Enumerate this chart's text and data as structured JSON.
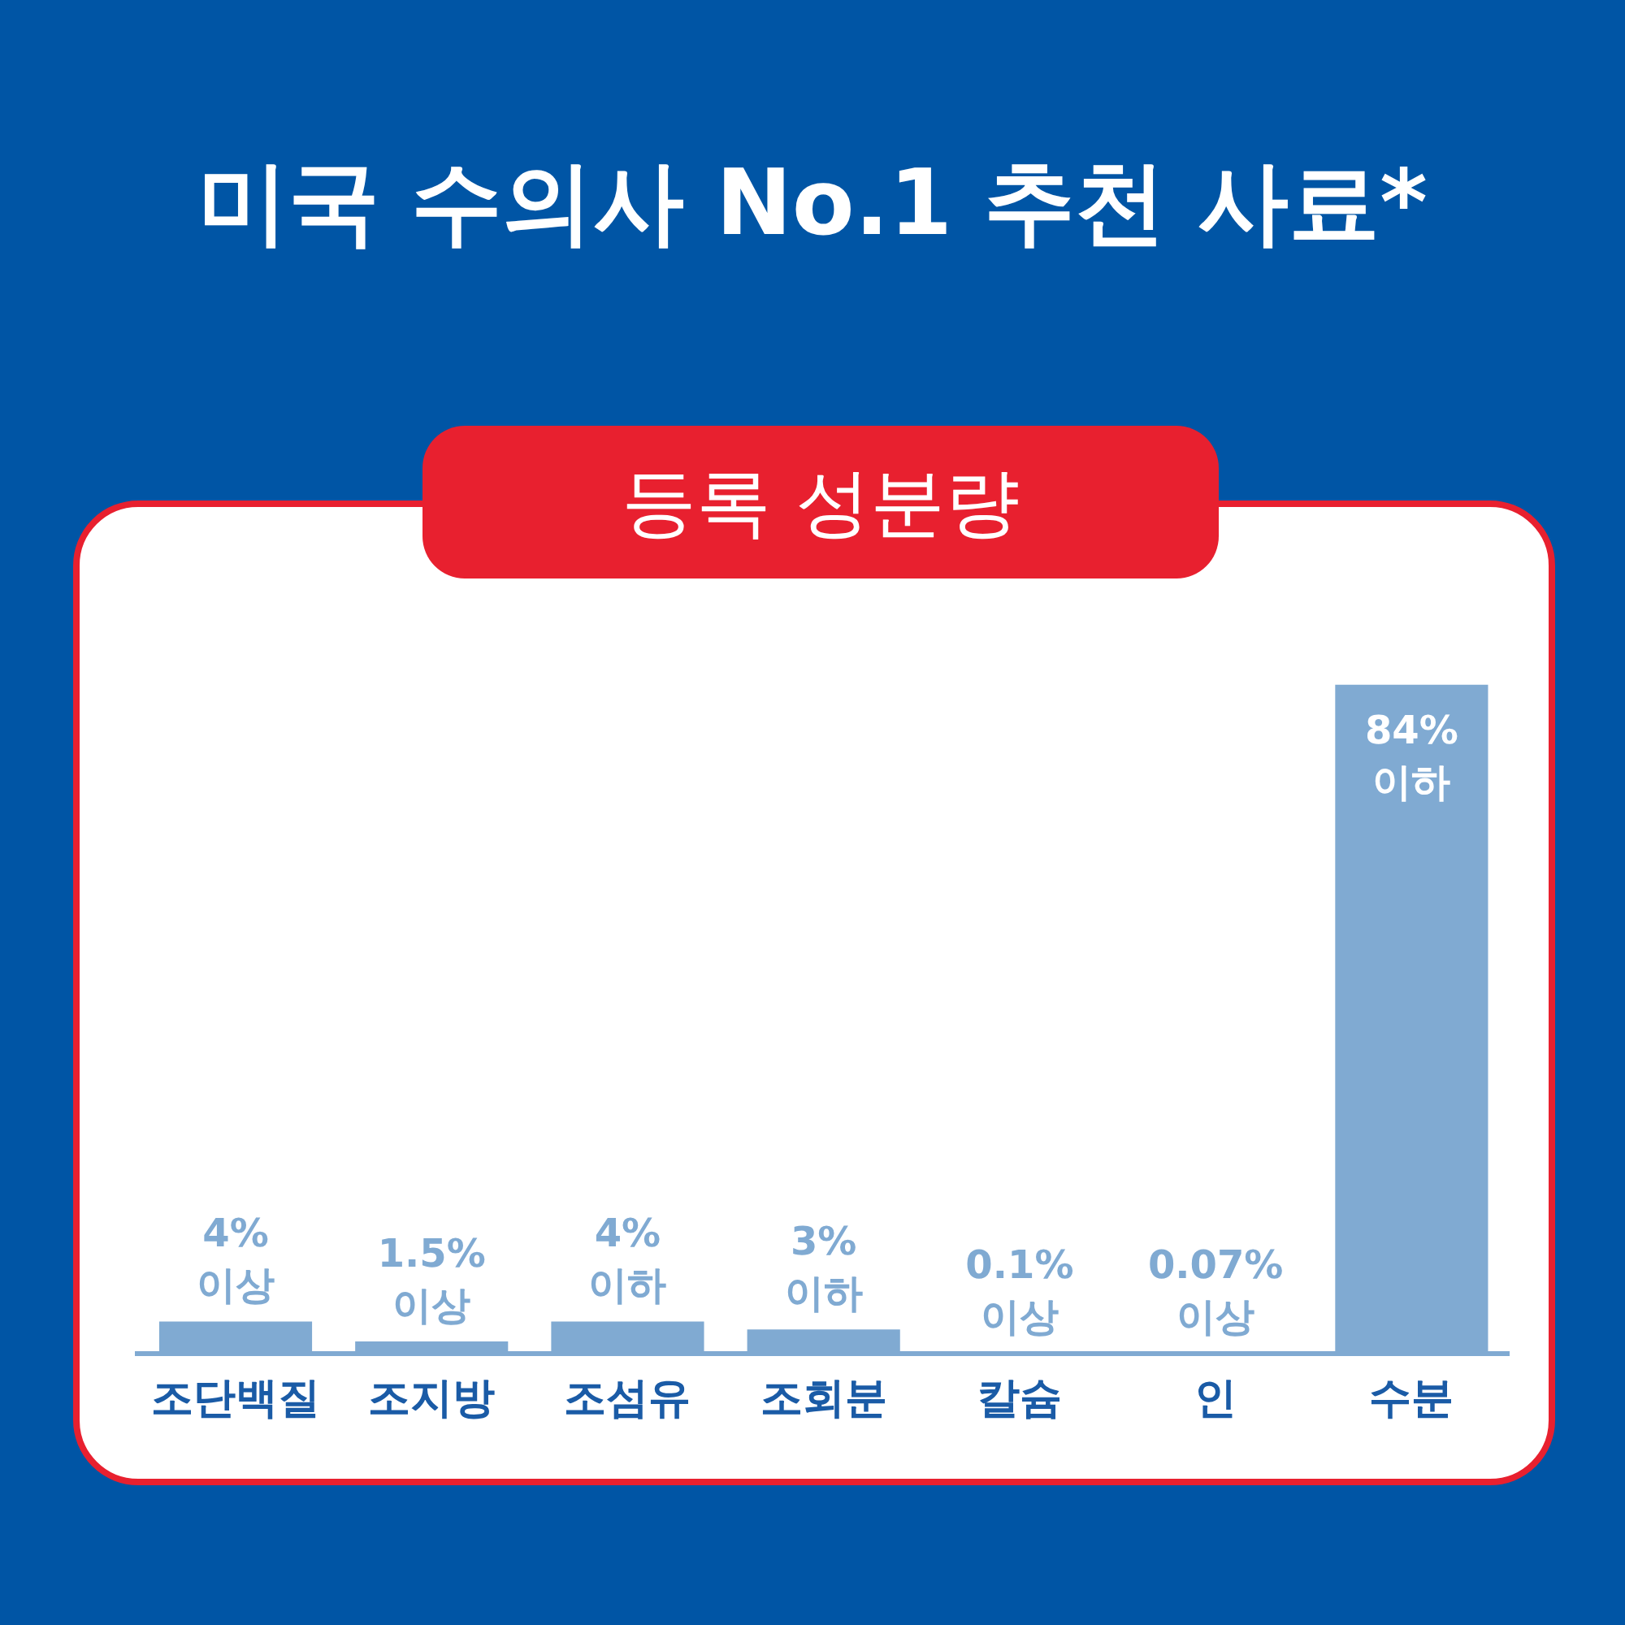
{
  "chart_data": {
    "type": "bar",
    "title": "미국 수의사 No.1 추천 사료*",
    "subtitle": "등록 성분량",
    "categories": [
      "조단백질",
      "조지방",
      "조섬유",
      "조회분",
      "칼슘",
      "인",
      "수분"
    ],
    "values": [
      4,
      1.5,
      4,
      3,
      0.1,
      0.07,
      84
    ],
    "value_labels": [
      "4% 이상",
      "1.5% 이상",
      "4% 이하",
      "3% 이하",
      "0.1% 이상",
      "0.07% 이상",
      "84% 이하"
    ],
    "color": "#80aad2",
    "grid": false,
    "legend": false
  }
}
